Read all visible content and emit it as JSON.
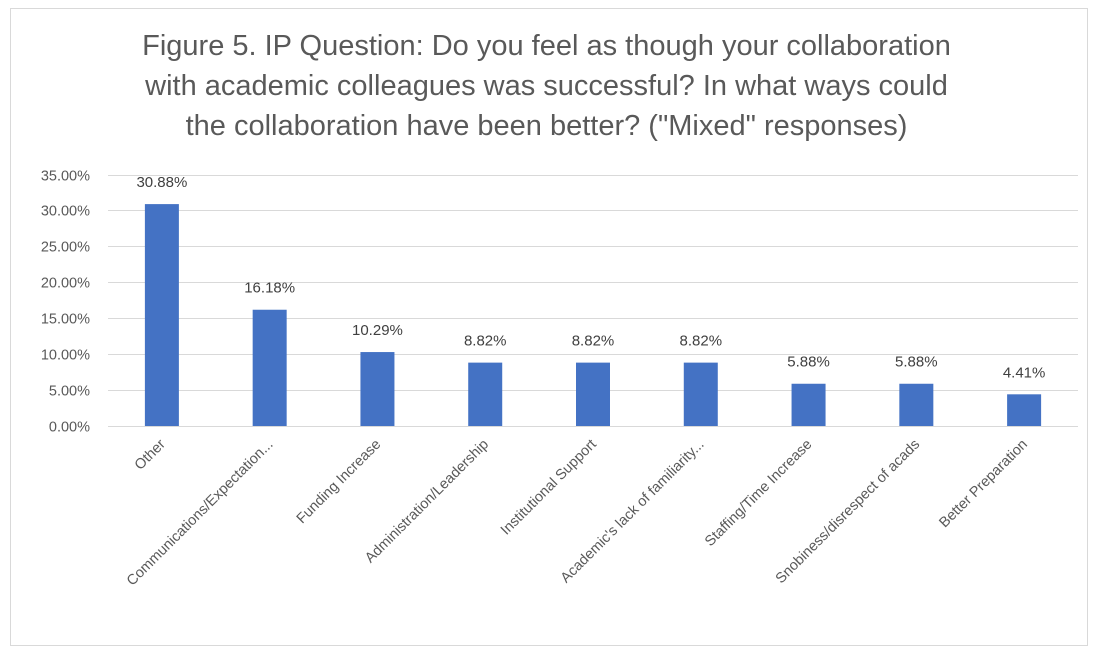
{
  "chart_data": {
    "type": "bar",
    "title": "Figure 5. IP Question: Do you feel as though your collaboration\nwith academic colleagues was successful? In what ways could\nthe collaboration have been better? (\"Mixed\" responses)",
    "categories": [
      "Other",
      "Communications/Expectation...",
      "Funding Increase",
      "Administration/Leadership",
      "Institutional Support",
      "Academic's lack of familiarity...",
      "Staffing/Time Increase",
      "Snobiness/disrespect of acads",
      "Better Preparation"
    ],
    "values": [
      30.88,
      16.18,
      10.29,
      8.82,
      8.82,
      8.82,
      5.88,
      5.88,
      4.41
    ],
    "value_labels": [
      "30.88%",
      "16.18%",
      "10.29%",
      "8.82%",
      "8.82%",
      "8.82%",
      "5.88%",
      "5.88%",
      "4.41%"
    ],
    "yticks": [
      0,
      5,
      10,
      15,
      20,
      25,
      30,
      35
    ],
    "ytick_labels": [
      "0.00%",
      "5.00%",
      "10.00%",
      "15.00%",
      "20.00%",
      "25.00%",
      "30.00%",
      "35.00%"
    ],
    "ylim": [
      0,
      35
    ],
    "xlabel": "",
    "ylabel": "",
    "grid": true,
    "legend": "none",
    "colors": {
      "bar": "#4472C4",
      "grid": "#d9d9d9",
      "text": "#595959"
    }
  }
}
